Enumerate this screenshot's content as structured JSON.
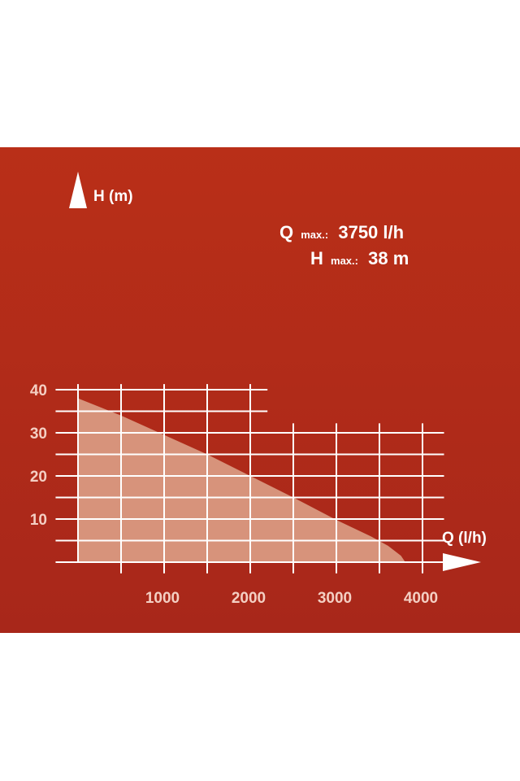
{
  "chart_data": {
    "type": "area",
    "title": "",
    "xlabel": "Q (l/h)",
    "ylabel": "H (m)",
    "xlim": [
      -100,
      4000
    ],
    "ylim": [
      0,
      40
    ],
    "x_ticks": [
      "1000",
      "2000",
      "3000",
      "4000"
    ],
    "y_ticks": [
      "10",
      "20",
      "30",
      "40"
    ],
    "grid": true,
    "series": [
      {
        "x": [
          0,
          500,
          1000,
          1500,
          2000,
          2500,
          3000,
          3400,
          3600,
          3750,
          3800
        ],
        "y": [
          38,
          34,
          29.5,
          25,
          20,
          15,
          9.8,
          6,
          3.8,
          1.5,
          0
        ]
      }
    ],
    "annotations": {
      "q_label": "Q",
      "q_sub": "max.:",
      "q_value": "3750 l/h",
      "h_label": "H",
      "h_sub": "max.:",
      "h_value": "38 m"
    },
    "colors": {
      "background_top": "#b92f18",
      "background_bottom": "#a8271a",
      "fill": "#d7937b",
      "grid": "#ffffff",
      "tick_text": "#f4cfc3"
    }
  }
}
